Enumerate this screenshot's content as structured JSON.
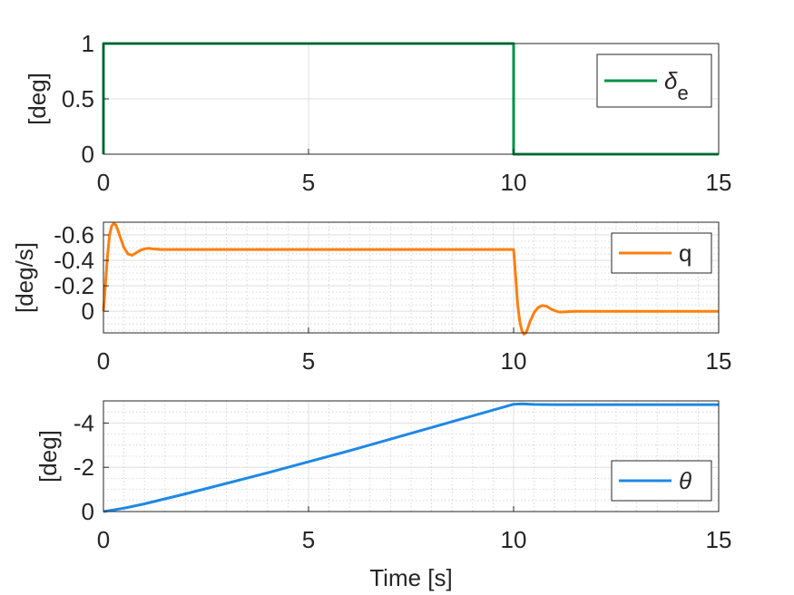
{
  "chart_data": [
    {
      "type": "line",
      "ylabel": "[deg]",
      "xlabel": "",
      "xlim": [
        0,
        15
      ],
      "ylim": [
        0,
        1
      ],
      "y_reversed": false,
      "xticks": [
        0,
        5,
        10,
        15
      ],
      "yticks": [
        0,
        0.5,
        1
      ],
      "ytick_labels": [
        "0",
        "0.5",
        "1"
      ],
      "minor_grid": false,
      "grid": true,
      "legend_position": "top-right",
      "series": [
        {
          "name": "δe",
          "name_symbol": "δ",
          "name_subscript": "e",
          "color": "#009145",
          "x": [
            0,
            0,
            10,
            10,
            15
          ],
          "y": [
            0,
            1,
            1,
            0,
            0
          ]
        }
      ]
    },
    {
      "type": "line",
      "ylabel": "[deg/s]",
      "xlabel": "",
      "xlim": [
        0,
        15
      ],
      "ylim": [
        0.17,
        -0.7
      ],
      "y_reversed": true,
      "xticks": [
        0,
        5,
        10,
        15
      ],
      "yticks": [
        -0.6,
        -0.4,
        -0.2,
        0
      ],
      "ytick_labels": [
        "-0.6",
        "-0.4",
        "-0.2",
        "0"
      ],
      "minor_grid": true,
      "grid": true,
      "legend_position": "top-right",
      "series": [
        {
          "name": "q",
          "color": "#ff7f0e",
          "x": [
            0,
            0.05,
            0.1,
            0.15,
            0.2,
            0.25,
            0.3,
            0.35,
            0.4,
            0.5,
            0.6,
            0.7,
            0.8,
            0.9,
            1.0,
            1.1,
            1.2,
            1.4,
            1.6,
            2,
            4,
            6,
            8,
            10,
            10.05,
            10.1,
            10.15,
            10.2,
            10.25,
            10.3,
            10.35,
            10.4,
            10.5,
            10.6,
            10.7,
            10.8,
            10.9,
            11.0,
            11.1,
            11.2,
            11.4,
            11.6,
            12,
            15
          ],
          "y": [
            0,
            -0.22,
            -0.44,
            -0.6,
            -0.67,
            -0.69,
            -0.68,
            -0.64,
            -0.59,
            -0.5,
            -0.45,
            -0.44,
            -0.46,
            -0.48,
            -0.49,
            -0.495,
            -0.49,
            -0.485,
            -0.485,
            -0.485,
            -0.485,
            -0.485,
            -0.485,
            -0.485,
            -0.27,
            -0.05,
            0.08,
            0.15,
            0.18,
            0.17,
            0.13,
            0.08,
            0.01,
            -0.03,
            -0.045,
            -0.04,
            -0.02,
            -0.005,
            0.005,
            0.006,
            0.002,
            0,
            0,
            0
          ]
        }
      ]
    },
    {
      "type": "line",
      "ylabel": "[deg]",
      "xlabel": "Time [s]",
      "xlim": [
        0,
        15
      ],
      "ylim": [
        0,
        -5
      ],
      "y_reversed": true,
      "xticks": [
        0,
        5,
        10,
        15
      ],
      "yticks": [
        0,
        -2,
        -4
      ],
      "ytick_labels": [
        "0",
        "-2",
        "-4"
      ],
      "minor_grid": true,
      "grid": true,
      "legend_position": "bottom-right",
      "series": [
        {
          "name": "θ",
          "color": "#1e88e5",
          "x": [
            0,
            0.5,
            1,
            2,
            4,
            6,
            8,
            10,
            10.2,
            10.5,
            11,
            12,
            15
          ],
          "y": [
            0,
            -0.15,
            -0.35,
            -0.8,
            -1.75,
            -2.75,
            -3.8,
            -4.85,
            -4.87,
            -4.84,
            -4.83,
            -4.83,
            -4.83
          ]
        }
      ]
    }
  ]
}
